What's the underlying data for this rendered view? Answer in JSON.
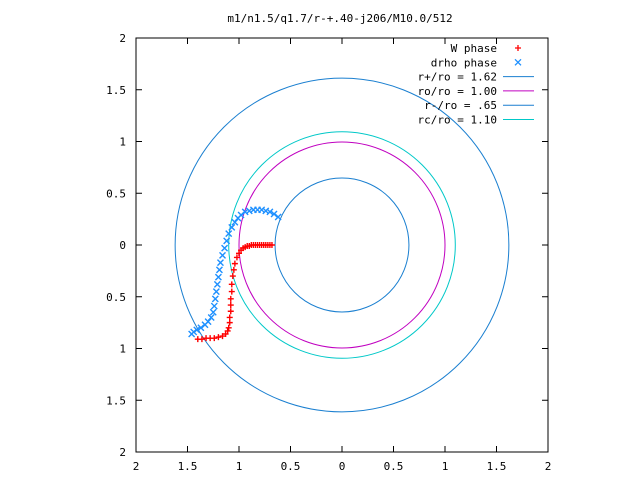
{
  "chart_data": {
    "type": "scatter",
    "title": "m1/n1.5/q1.7/r-+.40-j206/M10.0/512",
    "xlabel": "",
    "ylabel": "",
    "xlim": [
      2,
      -2
    ],
    "ylim": [
      -2,
      2
    ],
    "x_ticks": [
      2,
      1.5,
      1,
      0.5,
      0,
      0.5,
      1,
      1.5,
      2
    ],
    "x_tick_values": [
      2,
      1.5,
      1,
      0.5,
      0,
      -0.5,
      -1,
      -1.5,
      -2
    ],
    "x_tick_labels": [
      "2",
      "1.5",
      "1",
      "0.5",
      "0",
      "0.5",
      "1",
      "1.5",
      "2"
    ],
    "y_tick_values": [
      2,
      1.5,
      1,
      0.5,
      0,
      -0.5,
      -1,
      -1.5,
      -2
    ],
    "y_tick_labels": [
      "2",
      "1.5",
      "1",
      "0.5",
      "0",
      "0.5",
      "1",
      "1.5",
      "2"
    ],
    "grid": false,
    "legend_position": "top-right",
    "series": [
      {
        "name": "W phase",
        "kind": "points",
        "marker": "+",
        "color": "#ff0000",
        "points": [
          [
            0.68,
            0.0
          ],
          [
            0.7,
            0.0
          ],
          [
            0.72,
            0.0
          ],
          [
            0.74,
            0.0
          ],
          [
            0.76,
            0.0
          ],
          [
            0.78,
            0.0
          ],
          [
            0.8,
            0.0
          ],
          [
            0.82,
            0.0
          ],
          [
            0.84,
            0.0
          ],
          [
            0.86,
            0.0
          ],
          [
            0.88,
            0.0
          ],
          [
            0.9,
            -0.01
          ],
          [
            0.92,
            -0.01
          ],
          [
            0.94,
            -0.02
          ],
          [
            0.96,
            -0.03
          ],
          [
            0.98,
            -0.05
          ],
          [
            1.0,
            -0.08
          ],
          [
            1.02,
            -0.12
          ],
          [
            1.04,
            -0.18
          ],
          [
            1.05,
            -0.24
          ],
          [
            1.06,
            -0.3
          ],
          [
            1.07,
            -0.38
          ],
          [
            1.07,
            -0.45
          ],
          [
            1.08,
            -0.52
          ],
          [
            1.08,
            -0.58
          ],
          [
            1.08,
            -0.64
          ],
          [
            1.09,
            -0.7
          ],
          [
            1.09,
            -0.75
          ],
          [
            1.1,
            -0.8
          ],
          [
            1.11,
            -0.83
          ],
          [
            1.13,
            -0.86
          ],
          [
            1.16,
            -0.88
          ],
          [
            1.2,
            -0.89
          ],
          [
            1.24,
            -0.9
          ],
          [
            1.28,
            -0.9
          ],
          [
            1.32,
            -0.9
          ],
          [
            1.36,
            -0.91
          ],
          [
            1.4,
            -0.91
          ]
        ]
      },
      {
        "name": "drho phase",
        "kind": "points",
        "marker": "x",
        "color": "#1e90ff",
        "points": [
          [
            0.62,
            0.27
          ],
          [
            0.66,
            0.3
          ],
          [
            0.7,
            0.32
          ],
          [
            0.74,
            0.33
          ],
          [
            0.78,
            0.34
          ],
          [
            0.82,
            0.34
          ],
          [
            0.86,
            0.34
          ],
          [
            0.9,
            0.33
          ],
          [
            0.94,
            0.32
          ],
          [
            0.98,
            0.29
          ],
          [
            1.01,
            0.26
          ],
          [
            1.04,
            0.22
          ],
          [
            1.07,
            0.17
          ],
          [
            1.1,
            0.11
          ],
          [
            1.12,
            0.04
          ],
          [
            1.14,
            -0.03
          ],
          [
            1.16,
            -0.1
          ],
          [
            1.18,
            -0.17
          ],
          [
            1.19,
            -0.24
          ],
          [
            1.2,
            -0.31
          ],
          [
            1.21,
            -0.38
          ],
          [
            1.22,
            -0.45
          ],
          [
            1.23,
            -0.52
          ],
          [
            1.24,
            -0.59
          ],
          [
            1.25,
            -0.65
          ],
          [
            1.27,
            -0.7
          ],
          [
            1.3,
            -0.74
          ],
          [
            1.33,
            -0.77
          ],
          [
            1.37,
            -0.8
          ],
          [
            1.41,
            -0.82
          ],
          [
            1.44,
            -0.84
          ],
          [
            1.46,
            -0.86
          ]
        ]
      },
      {
        "name": "r+/ro = 1.62",
        "kind": "circle",
        "radius": 1.62,
        "color": "#1a7fd0"
      },
      {
        "name": "ro/ro = 1.00",
        "kind": "circle",
        "radius": 1.0,
        "color": "#c000c0"
      },
      {
        "name": "r-/ro = .65",
        "kind": "circle",
        "radius": 0.65,
        "color": "#1a7fd0"
      },
      {
        "name": "rc/ro = 1.10",
        "kind": "circle",
        "radius": 1.1,
        "color": "#00c8c8"
      }
    ]
  }
}
